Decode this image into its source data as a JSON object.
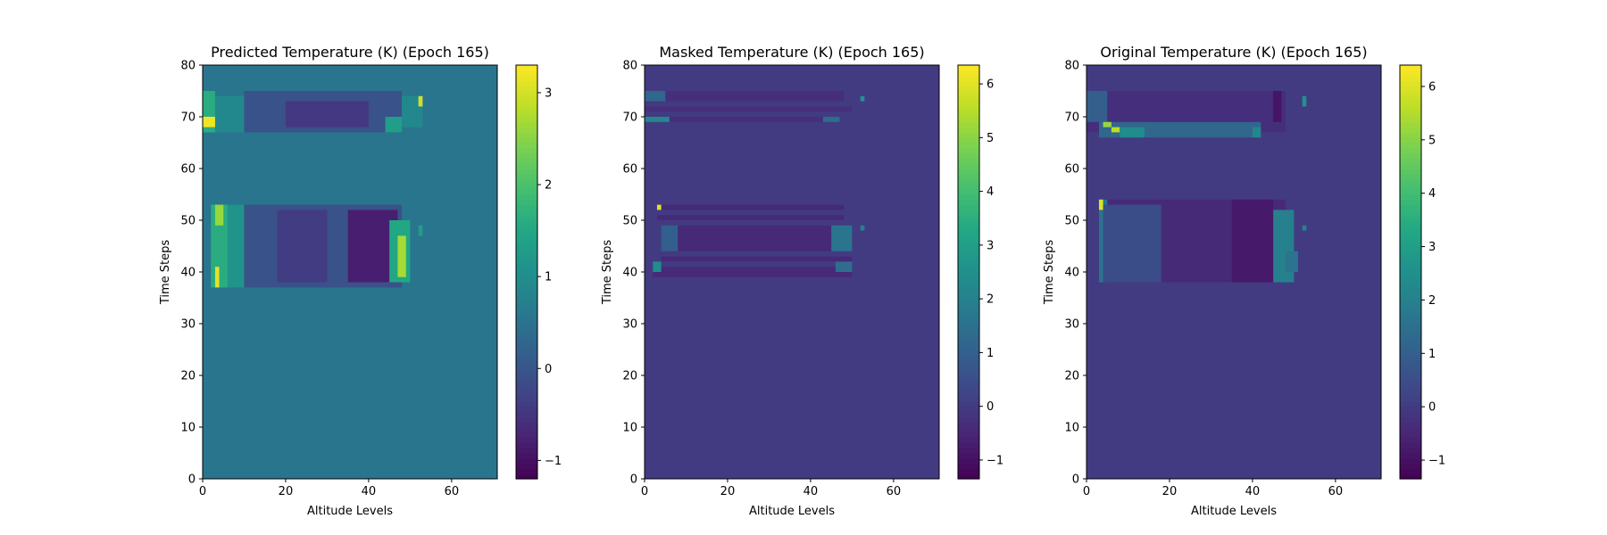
{
  "chart_data": [
    {
      "type": "heatmap",
      "title": "Predicted Temperature (K) (Epoch 165)",
      "xlabel": "Altitude Levels",
      "ylabel": "Time Steps",
      "xlim": [
        0,
        71
      ],
      "ylim": [
        0,
        80
      ],
      "xticks": [
        "0",
        "20",
        "40",
        "60"
      ],
      "yticks": [
        "0",
        "10",
        "20",
        "30",
        "40",
        "50",
        "60",
        "70",
        "80"
      ],
      "colormap": "viridis",
      "colorbar": {
        "min": -1.2,
        "max": 3.3,
        "ticks": [
          "−1",
          "0",
          "1",
          "2",
          "3"
        ],
        "tick_values": [
          -1,
          0,
          1,
          2,
          3
        ]
      },
      "background_value": 0.55,
      "regions": [
        {
          "x": [
            0,
            3
          ],
          "y": [
            67,
            75
          ],
          "value": 1.6
        },
        {
          "x": [
            0,
            4
          ],
          "y": [
            68,
            70
          ],
          "value": 3.2
        },
        {
          "x": [
            3,
            10
          ],
          "y": [
            67,
            74
          ],
          "value": 0.9
        },
        {
          "x": [
            10,
            48
          ],
          "y": [
            67,
            75
          ],
          "value": -0.05
        },
        {
          "x": [
            20,
            40
          ],
          "y": [
            68,
            73
          ],
          "value": -0.45
        },
        {
          "x": [
            44,
            48
          ],
          "y": [
            67,
            70
          ],
          "value": 1.3
        },
        {
          "x": [
            48,
            53
          ],
          "y": [
            68,
            74
          ],
          "value": 0.9
        },
        {
          "x": [
            52,
            53
          ],
          "y": [
            72,
            74
          ],
          "value": 3.0
        },
        {
          "x": [
            2,
            10
          ],
          "y": [
            37,
            53
          ],
          "value": 1.1
        },
        {
          "x": [
            2,
            6
          ],
          "y": [
            37,
            53
          ],
          "value": 1.6
        },
        {
          "x": [
            3,
            4
          ],
          "y": [
            37,
            41
          ],
          "value": 3.1
        },
        {
          "x": [
            3,
            5
          ],
          "y": [
            49,
            53
          ],
          "value": 2.6
        },
        {
          "x": [
            10,
            48
          ],
          "y": [
            37,
            53
          ],
          "value": -0.05
        },
        {
          "x": [
            18,
            30
          ],
          "y": [
            38,
            52
          ],
          "value": -0.4
        },
        {
          "x": [
            35,
            47
          ],
          "y": [
            38,
            52
          ],
          "value": -0.8
        },
        {
          "x": [
            45,
            50
          ],
          "y": [
            38,
            50
          ],
          "value": 1.5
        },
        {
          "x": [
            47,
            49
          ],
          "y": [
            39,
            47
          ],
          "value": 2.7
        },
        {
          "x": [
            52,
            53
          ],
          "y": [
            47,
            49
          ],
          "value": 1.3
        }
      ]
    },
    {
      "type": "heatmap",
      "title": "Masked Temperature (K) (Epoch 165)",
      "xlabel": "Altitude Levels",
      "ylabel": "Time Steps",
      "xlim": [
        0,
        71
      ],
      "ylim": [
        0,
        80
      ],
      "xticks": [
        "0",
        "20",
        "40",
        "60"
      ],
      "yticks": [
        "0",
        "10",
        "20",
        "30",
        "40",
        "50",
        "60",
        "70",
        "80"
      ],
      "colormap": "viridis",
      "colorbar": {
        "min": -1.35,
        "max": 6.35,
        "ticks": [
          "−1",
          "0",
          "1",
          "2",
          "3",
          "4",
          "5",
          "6"
        ],
        "tick_values": [
          -1,
          0,
          1,
          2,
          3,
          4,
          5,
          6
        ]
      },
      "background_value": 0.0,
      "regions": [
        {
          "x": [
            0,
            48
          ],
          "y": [
            73,
            75
          ],
          "value": -0.3
        },
        {
          "x": [
            0,
            5
          ],
          "y": [
            73,
            75
          ],
          "value": 1.2
        },
        {
          "x": [
            0,
            50
          ],
          "y": [
            71,
            72
          ],
          "value": -0.3
        },
        {
          "x": [
            0,
            46
          ],
          "y": [
            69,
            70
          ],
          "value": -0.3
        },
        {
          "x": [
            0,
            6
          ],
          "y": [
            69,
            70
          ],
          "value": 2.2
        },
        {
          "x": [
            43,
            47
          ],
          "y": [
            69,
            70
          ],
          "value": 1.4
        },
        {
          "x": [
            52,
            53
          ],
          "y": [
            73,
            74
          ],
          "value": 2.6
        },
        {
          "x": [
            3,
            48
          ],
          "y": [
            52,
            53
          ],
          "value": -0.4
        },
        {
          "x": [
            3,
            4
          ],
          "y": [
            52,
            53
          ],
          "value": 6.0
        },
        {
          "x": [
            3,
            48
          ],
          "y": [
            50,
            51
          ],
          "value": -0.4
        },
        {
          "x": [
            4,
            50
          ],
          "y": [
            44,
            49
          ],
          "value": -0.4
        },
        {
          "x": [
            4,
            8
          ],
          "y": [
            44,
            49
          ],
          "value": 1.0
        },
        {
          "x": [
            45,
            50
          ],
          "y": [
            44,
            49
          ],
          "value": 1.6
        },
        {
          "x": [
            4,
            50
          ],
          "y": [
            42,
            43
          ],
          "value": -0.4
        },
        {
          "x": [
            2,
            50
          ],
          "y": [
            39,
            41
          ],
          "value": -0.4
        },
        {
          "x": [
            2,
            4
          ],
          "y": [
            40,
            42
          ],
          "value": 2.4
        },
        {
          "x": [
            46,
            50
          ],
          "y": [
            40,
            42
          ],
          "value": 1.4
        },
        {
          "x": [
            52,
            53
          ],
          "y": [
            48,
            49
          ],
          "value": 2.0
        }
      ]
    },
    {
      "type": "heatmap",
      "title": "Original Temperature (K) (Epoch 165)",
      "xlabel": "Altitude Levels",
      "ylabel": "Time Steps",
      "xlim": [
        0,
        71
      ],
      "ylim": [
        0,
        80
      ],
      "xticks": [
        "0",
        "20",
        "40",
        "60"
      ],
      "yticks": [
        "0",
        "10",
        "20",
        "30",
        "40",
        "50",
        "60",
        "70",
        "80"
      ],
      "colormap": "viridis",
      "colorbar": {
        "min": -1.35,
        "max": 6.4,
        "ticks": [
          "−1",
          "0",
          "1",
          "2",
          "3",
          "4",
          "5",
          "6"
        ],
        "tick_values": [
          -1,
          0,
          1,
          2,
          3,
          4,
          5,
          6
        ]
      },
      "background_value": 0.0,
      "regions": [
        {
          "x": [
            0,
            48
          ],
          "y": [
            67,
            75
          ],
          "value": -0.3
        },
        {
          "x": [
            0,
            5
          ],
          "y": [
            69,
            75
          ],
          "value": 1.0
        },
        {
          "x": [
            3,
            42
          ],
          "y": [
            66,
            69
          ],
          "value": 1.2
        },
        {
          "x": [
            4,
            6
          ],
          "y": [
            68,
            69
          ],
          "value": 5.2
        },
        {
          "x": [
            6,
            8
          ],
          "y": [
            67,
            68
          ],
          "value": 5.6
        },
        {
          "x": [
            8,
            14
          ],
          "y": [
            66,
            68
          ],
          "value": 2.4
        },
        {
          "x": [
            40,
            42
          ],
          "y": [
            66,
            68
          ],
          "value": 2.2
        },
        {
          "x": [
            45,
            47
          ],
          "y": [
            69,
            75
          ],
          "value": -0.9
        },
        {
          "x": [
            52,
            53
          ],
          "y": [
            72,
            74
          ],
          "value": 2.6
        },
        {
          "x": [
            3,
            48
          ],
          "y": [
            38,
            54
          ],
          "value": -0.4
        },
        {
          "x": [
            3,
            5
          ],
          "y": [
            38,
            54
          ],
          "value": 1.6
        },
        {
          "x": [
            3,
            4
          ],
          "y": [
            52,
            54
          ],
          "value": 6.0
        },
        {
          "x": [
            4,
            18
          ],
          "y": [
            38,
            53
          ],
          "value": 0.5
        },
        {
          "x": [
            35,
            45
          ],
          "y": [
            38,
            54
          ],
          "value": -0.8
        },
        {
          "x": [
            45,
            50
          ],
          "y": [
            38,
            52
          ],
          "value": 2.0
        },
        {
          "x": [
            48,
            51
          ],
          "y": [
            40,
            44
          ],
          "value": 1.6
        },
        {
          "x": [
            52,
            53
          ],
          "y": [
            48,
            49
          ],
          "value": 2.0
        }
      ]
    }
  ]
}
